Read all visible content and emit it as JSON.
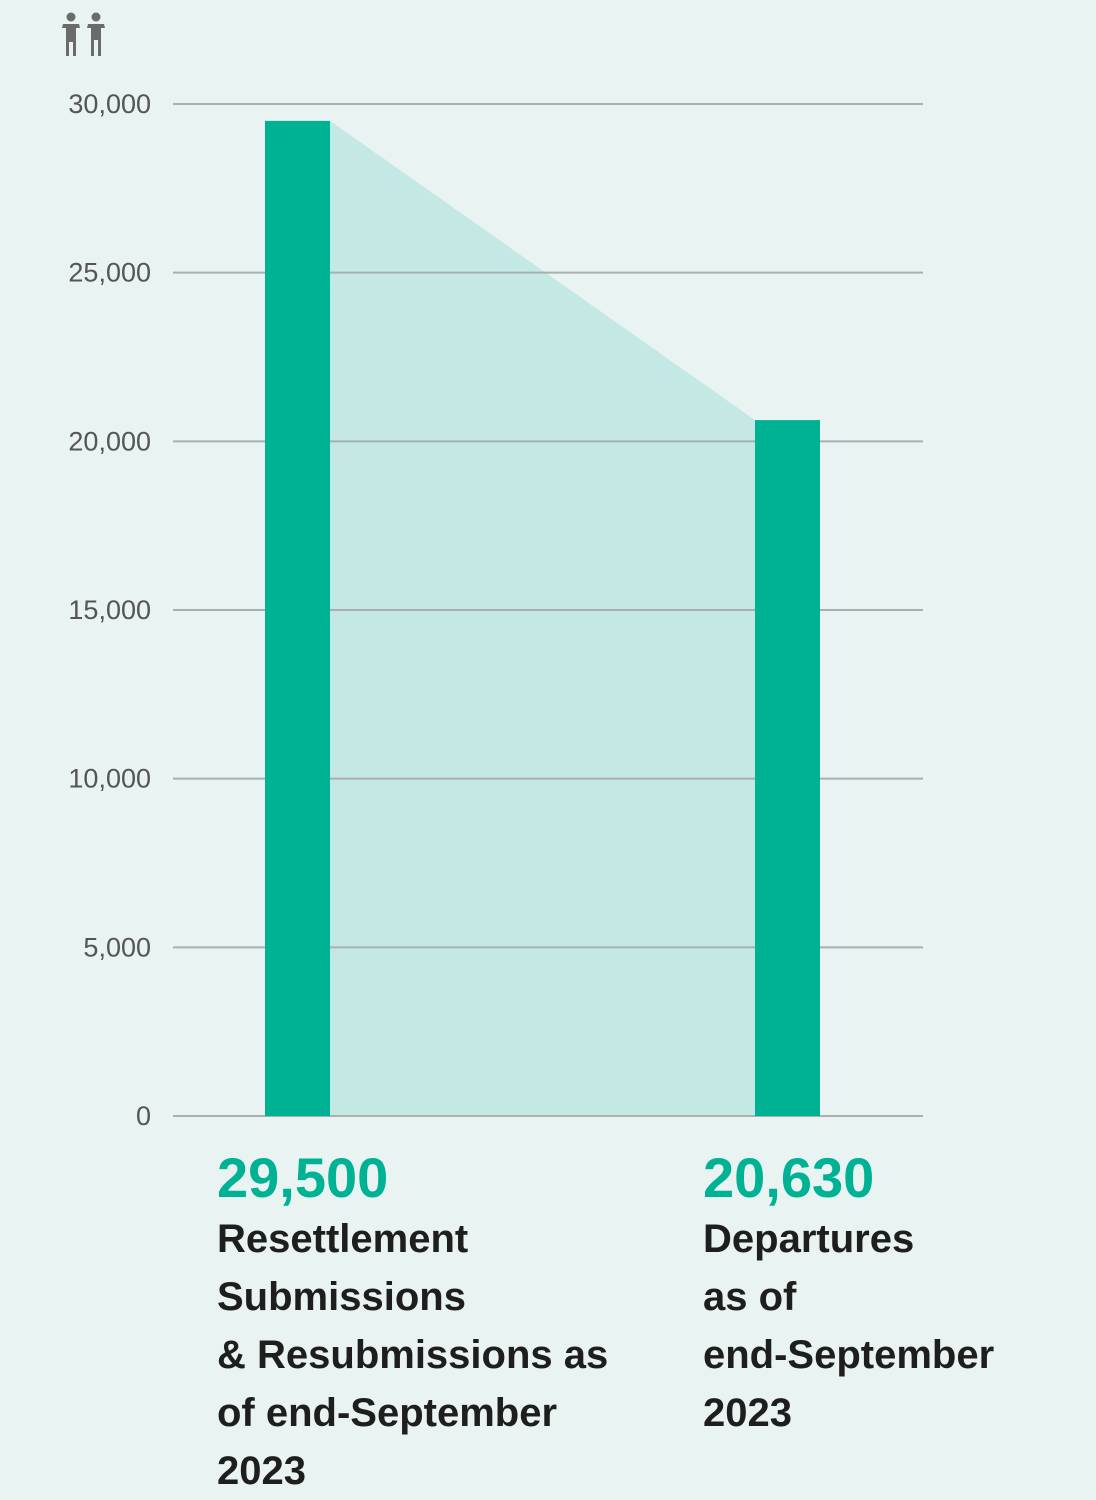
{
  "icon": "people-icon",
  "colors": {
    "bar": "#00b294",
    "area": "#c4e9e4",
    "grid": "#a8b0b0",
    "background": "#e8f3f2",
    "value_text": "#00b294",
    "desc_text": "#1e1e1e",
    "tick_text": "#555555"
  },
  "chart_data": {
    "type": "bar",
    "categories": [
      "Resettlement Submissions & Resubmissions as of end-September 2023",
      "Departures as of end-September 2023"
    ],
    "values": [
      29500,
      20630
    ],
    "value_labels": [
      "29,500",
      "20,630"
    ],
    "ylim": [
      0,
      30000
    ],
    "yticks": [
      0,
      5000,
      10000,
      15000,
      20000,
      25000,
      30000
    ],
    "ytick_labels": [
      "0",
      "5,000",
      "10,000",
      "15,000",
      "20,000",
      "25,000",
      "30,000"
    ],
    "grid": true,
    "shaded_connector_area": true
  },
  "labels": {
    "left_value": "29,500",
    "left_desc": [
      "Resettlement",
      "Submissions",
      "& Resubmissions as",
      "of end-September",
      "2023"
    ],
    "right_value": "20,630",
    "right_desc": [
      "Departures",
      "as of",
      "end-September",
      "2023"
    ]
  }
}
